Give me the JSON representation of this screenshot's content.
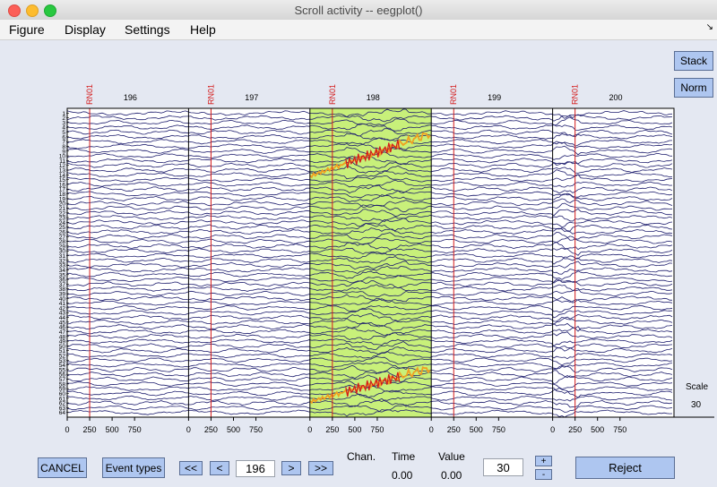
{
  "window": {
    "title": "Scroll activity -- eegplot()"
  },
  "menu": {
    "items": [
      "Figure",
      "Display",
      "Settings",
      "Help"
    ]
  },
  "side_buttons": {
    "stack": "Stack",
    "norm": "Norm"
  },
  "scale": {
    "label": "Scale",
    "value": "30"
  },
  "epochs": {
    "labels": [
      "196",
      "197",
      "198",
      "199",
      "200"
    ],
    "event_label": "RN01",
    "highlighted_index": 2,
    "x_ticks": [
      "0",
      "250",
      "500",
      "750"
    ]
  },
  "channels": {
    "count": 64,
    "labels": [
      "1",
      "2",
      "3",
      "4",
      "5",
      "6",
      "7",
      "8",
      "9",
      "10",
      "11",
      "12",
      "13",
      "14",
      "15",
      "16",
      "17",
      "18",
      "19",
      "20",
      "21",
      "22",
      "23",
      "24",
      "25",
      "26",
      "27",
      "28",
      "29",
      "30",
      "31",
      "32",
      "33",
      "34",
      "35",
      "36",
      "37",
      "38",
      "39",
      "40",
      "41",
      "42",
      "43",
      "44",
      "45",
      "46",
      "47",
      "48",
      "49",
      "50",
      "51",
      "52",
      "53",
      "54",
      "55",
      "56",
      "57",
      "58",
      "59",
      "60",
      "61",
      "62",
      "63",
      "64"
    ]
  },
  "colors": {
    "trace": "#1e1e6e",
    "highlight": "#c8f07a",
    "event": "#d41a1a",
    "orange": "#f0a020",
    "button": "#aec6f0"
  },
  "controls": {
    "cancel": "CANCEL",
    "event_types": "Event types",
    "prev_fast": "<<",
    "prev": "<",
    "position": "196",
    "next": ">",
    "next_fast": ">>",
    "chan_label": "Chan.",
    "time_label": "Time",
    "value_label": "Value",
    "time_value": "0.00",
    "value_value": "0.00",
    "spacing": "30",
    "plus": "+",
    "minus": "-",
    "reject": "Reject"
  }
}
